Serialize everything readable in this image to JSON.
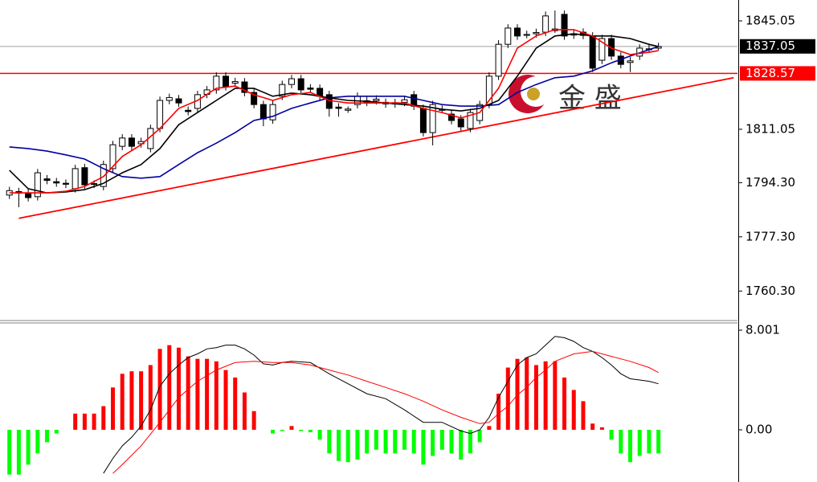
{
  "chart_data": [
    {
      "type": "candlestick",
      "xlim": [
        -1,
        77.4
      ],
      "ylim": [
        1751.3,
        1851.6
      ],
      "yticks": [
        1845.05,
        1811.05,
        {
          "value": 1794.3,
          "label": "1794.30"
        },
        {
          "value": 1777.3,
          "label": "1777.30"
        },
        {
          "value": 1760.3,
          "label": "1760.30"
        }
      ],
      "up_color": "#ffffff",
      "down_color": "#000000",
      "open": [
        1790.4,
        1791.5,
        1791.1,
        1789.9,
        1795.5,
        1794.6,
        1794.1,
        1792.4,
        1799.0,
        1794.0,
        1793.1,
        1798.7,
        1805.7,
        1808.3,
        1806.5,
        1805.0,
        1811.3,
        1820.1,
        1820.6,
        1817.0,
        1817.6,
        1822.0,
        1823.4,
        1827.7,
        1825.5,
        1825.9,
        1822.6,
        1818.8,
        1814.0,
        1821.4,
        1825.1,
        1826.9,
        1824.0,
        1823.9,
        1821.9,
        1818.0,
        1817.0,
        1818.8,
        1819.5,
        1820.0,
        1819.5,
        1819.0,
        1819.5,
        1821.9,
        1817.6,
        1810.0,
        1817.0,
        1815.8,
        1814.3,
        1811.3,
        1813.8,
        1818.8,
        1827.7,
        1837.7,
        1842.8,
        1840.5,
        1841.0,
        1841.5,
        1842.0,
        1847.1,
        1841.0,
        1841.5,
        1840.3,
        1832.7,
        1839.5,
        1834.0,
        1832.0,
        1834.0,
        1836.0,
        1836.5
      ],
      "high": [
        1793.0,
        1792.7,
        1792.3,
        1798.6,
        1796.7,
        1795.8,
        1795.3,
        1799.9,
        1800.2,
        1795.0,
        1801.2,
        1807.4,
        1809.5,
        1809.5,
        1808.4,
        1812.5,
        1821.3,
        1822.2,
        1821.8,
        1818.2,
        1823.1,
        1824.6,
        1828.9,
        1828.9,
        1827.2,
        1827.1,
        1823.8,
        1820.0,
        1820.0,
        1826.3,
        1828.1,
        1828.1,
        1825.2,
        1825.1,
        1823.1,
        1819.2,
        1818.2,
        1822.6,
        1821.2,
        1821.7,
        1820.7,
        1820.6,
        1821.5,
        1823.1,
        1818.8,
        1820.0,
        1818.5,
        1817.0,
        1815.5,
        1817.5,
        1820.0,
        1828.9,
        1839.0,
        1844.0,
        1844.0,
        1842.0,
        1842.6,
        1848.0,
        1848.3,
        1848.3,
        1842.2,
        1842.7,
        1841.5,
        1840.7,
        1840.7,
        1835.2,
        1833.7,
        1837.7,
        1837.5,
        1838.2
      ],
      "low": [
        1789.2,
        1786.6,
        1788.4,
        1788.7,
        1793.8,
        1793.0,
        1792.6,
        1791.2,
        1792.4,
        1792.6,
        1791.9,
        1797.5,
        1804.5,
        1804.5,
        1805.3,
        1803.8,
        1810.1,
        1818.9,
        1818.1,
        1815.4,
        1816.4,
        1820.8,
        1822.2,
        1823.2,
        1824.3,
        1821.4,
        1817.6,
        1812.0,
        1812.8,
        1820.2,
        1823.9,
        1822.2,
        1822.4,
        1820.2,
        1815.0,
        1815.0,
        1816.2,
        1817.6,
        1818.3,
        1818.8,
        1817.8,
        1817.8,
        1818.3,
        1817.1,
        1808.8,
        1806.0,
        1816.1,
        1812.6,
        1810.6,
        1810.1,
        1812.6,
        1817.6,
        1826.5,
        1836.5,
        1839.1,
        1839.6,
        1839.8,
        1840.3,
        1841.3,
        1839.1,
        1839.4,
        1839.3,
        1829.0,
        1831.5,
        1832.8,
        1830.2,
        1829.0,
        1832.8,
        1835.1,
        1835.8
      ],
      "close": [
        1791.8,
        1791.0,
        1789.6,
        1797.4,
        1795.0,
        1794.2,
        1793.8,
        1798.7,
        1793.6,
        1793.8,
        1800.0,
        1806.2,
        1808.3,
        1805.7,
        1807.2,
        1811.3,
        1820.1,
        1821.0,
        1819.3,
        1816.6,
        1821.9,
        1823.4,
        1827.7,
        1824.4,
        1826.0,
        1822.6,
        1818.8,
        1814.3,
        1818.8,
        1825.1,
        1826.9,
        1823.4,
        1823.6,
        1821.4,
        1817.6,
        1817.6,
        1817.4,
        1821.4,
        1820.0,
        1820.5,
        1819.0,
        1819.4,
        1820.3,
        1818.3,
        1810.0,
        1818.8,
        1817.3,
        1813.8,
        1811.8,
        1816.3,
        1818.8,
        1827.7,
        1837.7,
        1842.8,
        1840.3,
        1840.8,
        1841.4,
        1846.6,
        1842.5,
        1840.3,
        1840.6,
        1840.5,
        1830.2,
        1839.5,
        1834.0,
        1831.4,
        1832.5,
        1836.5,
        1836.3,
        1837.0
      ],
      "lines": [
        {
          "color": "#0000a0",
          "x": [
            0,
            2,
            4,
            6,
            8,
            10,
            12,
            14,
            16,
            18,
            20,
            22,
            24,
            26,
            28,
            30,
            32,
            34,
            36,
            38,
            40,
            42,
            44,
            46,
            48,
            50,
            52,
            54,
            56,
            58,
            60,
            62,
            64,
            66,
            68,
            69
          ],
          "values": [
            1805.5,
            1805.0,
            1804.2,
            1803.0,
            1801.7,
            1798.7,
            1796.2,
            1795.7,
            1796.2,
            1800.0,
            1803.7,
            1806.7,
            1810.0,
            1813.8,
            1815.1,
            1817.6,
            1819.3,
            1820.9,
            1821.4,
            1821.4,
            1821.4,
            1821.4,
            1820.1,
            1818.8,
            1818.3,
            1818.3,
            1818.8,
            1822.6,
            1825.1,
            1827.2,
            1827.7,
            1829.4,
            1831.9,
            1834.0,
            1836.0,
            1837.0
          ]
        },
        {
          "color": "#000000",
          "x": [
            0,
            2,
            4,
            6,
            8,
            10,
            12,
            14,
            16,
            18,
            20,
            22,
            24,
            26,
            28,
            30,
            32,
            34,
            36,
            38,
            40,
            42,
            44,
            46,
            48,
            50,
            52,
            54,
            56,
            58,
            60,
            62,
            64,
            66,
            68,
            69
          ],
          "values": [
            1798.2,
            1792.4,
            1791.1,
            1791.4,
            1792.1,
            1794.1,
            1797.4,
            1800.0,
            1805.0,
            1812.5,
            1816.3,
            1820.1,
            1823.9,
            1823.9,
            1821.4,
            1822.4,
            1821.9,
            1820.9,
            1820.1,
            1819.8,
            1819.3,
            1818.8,
            1818.3,
            1817.3,
            1816.8,
            1817.6,
            1820.1,
            1827.7,
            1836.5,
            1840.3,
            1841.0,
            1840.3,
            1840.3,
            1839.5,
            1837.7,
            1837.0
          ]
        },
        {
          "color": "#ff0000",
          "x": [
            0,
            2,
            4,
            6,
            8,
            10,
            12,
            14,
            16,
            18,
            20,
            22,
            24,
            26,
            28,
            30,
            32,
            34,
            36,
            38,
            40,
            42,
            44,
            46,
            48,
            50,
            52,
            54,
            56,
            58,
            60,
            62,
            64,
            66,
            68,
            69
          ],
          "values": [
            1791.1,
            1791.1,
            1791.1,
            1791.6,
            1793.1,
            1796.2,
            1802.5,
            1806.2,
            1811.3,
            1817.6,
            1820.1,
            1823.9,
            1824.6,
            1821.9,
            1820.1,
            1821.9,
            1822.6,
            1820.1,
            1819.3,
            1819.3,
            1819.3,
            1819.3,
            1817.6,
            1816.3,
            1814.6,
            1816.3,
            1823.9,
            1836.5,
            1840.3,
            1842.3,
            1842.3,
            1840.3,
            1836.5,
            1834.5,
            1835.2,
            1835.7
          ]
        }
      ],
      "trendline": {
        "color": "#ff0000",
        "x": [
          1,
          77
        ],
        "values": [
          1783.1,
          1827.2
        ]
      },
      "price_lines": [
        {
          "value": 1837.05,
          "color": "#c0c0c0",
          "label_color": "#000000"
        },
        {
          "value": 1828.57,
          "color": "#ff0000",
          "label_color": "#ff0000"
        }
      ],
      "watermark": "金 盛"
    },
    {
      "type": "macd",
      "xlim": [
        -1,
        77.4
      ],
      "ylim": [
        -3.55,
        8.52
      ],
      "yticks": [
        8.001,
        {
          "value": 0,
          "label": "0.00"
        }
      ],
      "histogram": {
        "positive_color": "#ff0000",
        "negative_color": "#00ff00",
        "values": [
          -3.6,
          -3.6,
          -2.8,
          -1.9,
          -1.0,
          -0.3,
          0,
          1.3,
          1.3,
          1.3,
          1.9,
          3.4,
          4.5,
          4.7,
          4.7,
          5.2,
          6.5,
          6.8,
          6.6,
          5.9,
          5.7,
          5.7,
          5.5,
          4.8,
          4.2,
          3.0,
          1.5,
          0,
          -0.3,
          -0.1,
          0.3,
          -0.1,
          -0.2,
          -0.8,
          -1.9,
          -2.5,
          -2.6,
          -2.4,
          -1.9,
          -1.6,
          -1.9,
          -1.9,
          -1.6,
          -1.9,
          -2.8,
          -2.1,
          -1.6,
          -1.9,
          -2.4,
          -1.9,
          -1.0,
          0.3,
          2.9,
          5.0,
          5.7,
          5.8,
          5.2,
          5.5,
          5.5,
          4.2,
          3.2,
          2.3,
          0.5,
          0.2,
          -0.8,
          -1.9,
          -2.6,
          -2.1,
          -1.9,
          -1.9
        ]
      },
      "series": [
        {
          "color": "#000000",
          "x": [
            10,
            11,
            12,
            13,
            14,
            15,
            16,
            17,
            18,
            19,
            20,
            21,
            22,
            23,
            24,
            25,
            26,
            27,
            28,
            29,
            30,
            32,
            34,
            36,
            38,
            40,
            42,
            44,
            46,
            48,
            49,
            50,
            51,
            52,
            53,
            54,
            55,
            56,
            57,
            58,
            59,
            60,
            61,
            62,
            63,
            64,
            65,
            66,
            67,
            68,
            69
          ],
          "values": [
            -3.5,
            -2.3,
            -1.3,
            -0.6,
            0.3,
            1.6,
            3.5,
            4.5,
            5.2,
            5.8,
            6.1,
            6.5,
            6.6,
            6.8,
            6.8,
            6.5,
            6.0,
            5.3,
            5.2,
            5.4,
            5.5,
            5.4,
            4.5,
            3.7,
            2.9,
            2.5,
            1.6,
            0.6,
            0.6,
            -0.1,
            -0.3,
            0,
            1.0,
            2.6,
            3.9,
            5.2,
            5.8,
            6.1,
            6.8,
            7.5,
            7.4,
            7.1,
            6.6,
            6.3,
            5.8,
            5.2,
            4.5,
            4.1,
            4.0,
            3.9,
            3.7
          ]
        },
        {
          "color": "#ff0000",
          "x": [
            11,
            12,
            14,
            16,
            18,
            20,
            22,
            24,
            26,
            28,
            30,
            32,
            34,
            36,
            38,
            40,
            42,
            44,
            46,
            48,
            50,
            51,
            52,
            53,
            54,
            55,
            56,
            57,
            58,
            60,
            62,
            64,
            66,
            68,
            69
          ],
          "values": [
            -3.5,
            -2.8,
            -1.3,
            0.6,
            2.6,
            3.9,
            4.8,
            5.4,
            5.5,
            5.4,
            5.4,
            5.2,
            4.8,
            4.4,
            3.9,
            3.4,
            2.9,
            2.3,
            1.6,
            1.0,
            0.5,
            0.6,
            1.3,
            1.9,
            2.8,
            3.4,
            4.2,
            4.8,
            5.5,
            6.1,
            6.3,
            5.9,
            5.5,
            5.0,
            4.6
          ]
        }
      ]
    }
  ]
}
